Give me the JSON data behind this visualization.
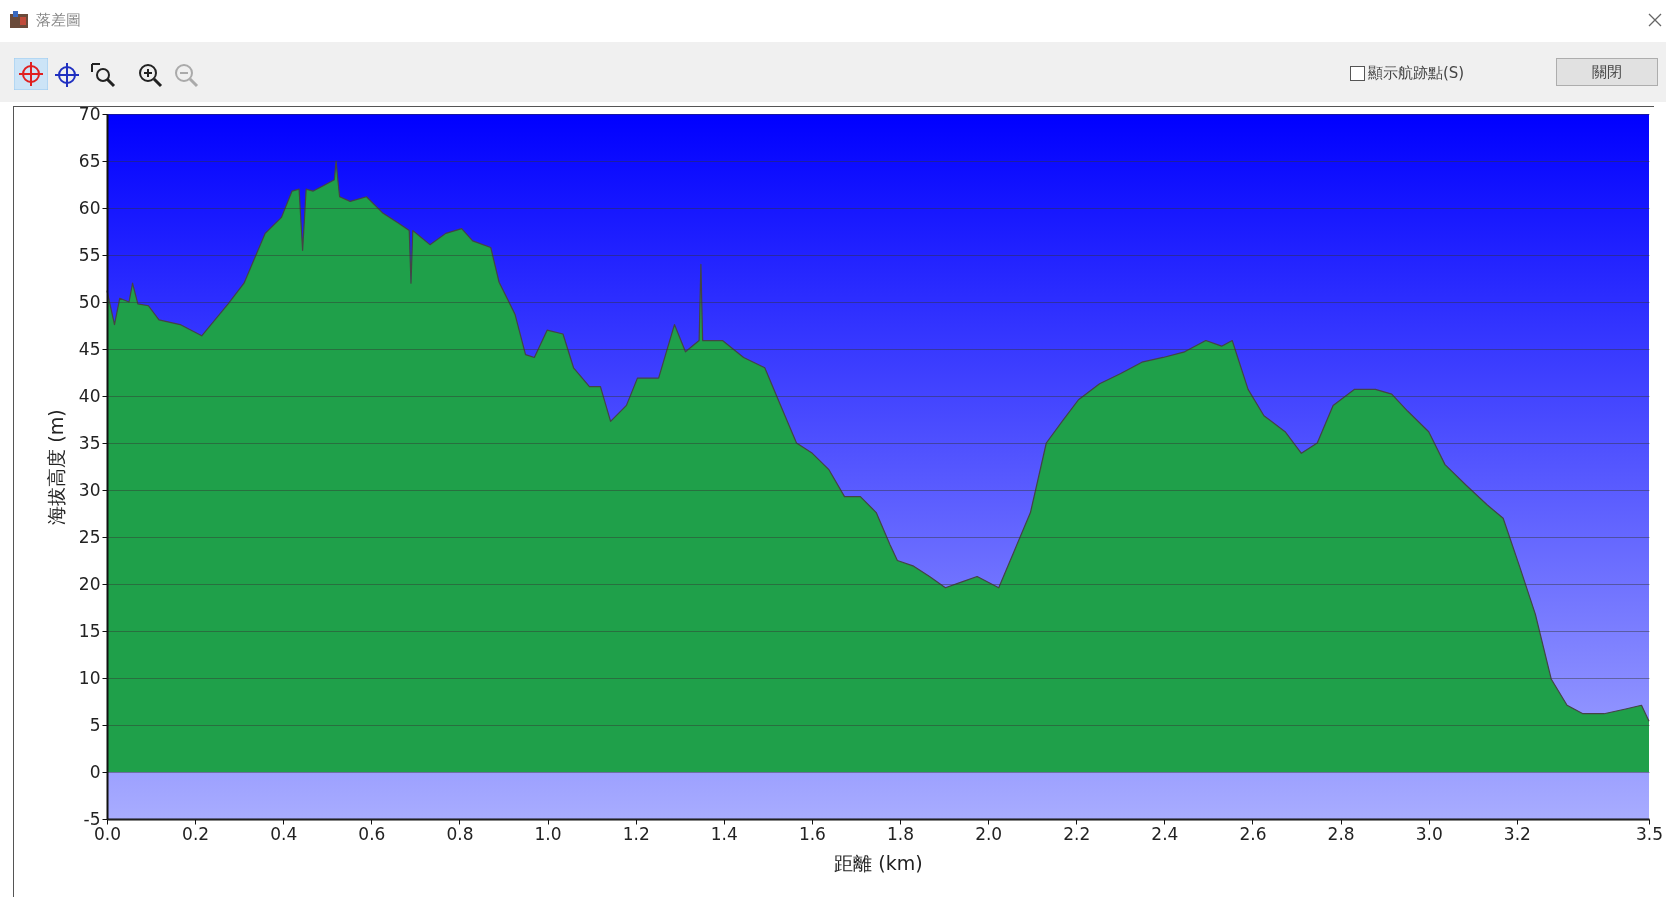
{
  "chart_data": {
    "type": "area",
    "title": "落差圖",
    "xlabel": "距離 (km)",
    "ylabel": "海拔高度 (m)",
    "annotations": [
      "顯示航跡點(S)",
      "關閉"
    ],
    "x": [
      0,
      0.017,
      0.029,
      0.05,
      0.058,
      0.07,
      0.094,
      0.118,
      0.166,
      0.215,
      0.275,
      0.311,
      0.359,
      0.396,
      0.42,
      0.436,
      0.444,
      0.452,
      0.468,
      0.492,
      0.516,
      0.52,
      0.524,
      0.528,
      0.552,
      0.589,
      0.625,
      0.661,
      0.686,
      0.69,
      0.694,
      0.733,
      0.769,
      0.805,
      0.83,
      0.871,
      0.89,
      0.926,
      0.95,
      0.97,
      0.999,
      1.035,
      1.059,
      1.095,
      1.12,
      1.143,
      1.179,
      1.204,
      1.252,
      1.288,
      1.313,
      1.344,
      1.348,
      1.352,
      1.397,
      1.445,
      1.493,
      1.529,
      1.565,
      1.601,
      1.638,
      1.674,
      1.71,
      1.746,
      1.777,
      1.794,
      1.831,
      1.867,
      1.903,
      1.939,
      1.975,
      2.024,
      2.06,
      2.096,
      2.132,
      2.168,
      2.205,
      2.253,
      2.301,
      2.349,
      2.397,
      2.446,
      2.494,
      2.53,
      2.554,
      2.59,
      2.626,
      2.674,
      2.711,
      2.747,
      2.783,
      2.831,
      2.879,
      2.916,
      2.952,
      3.0,
      3.037,
      3.085,
      3.133,
      3.169,
      3.206,
      3.242,
      3.278,
      3.314,
      3.35,
      3.398,
      3.447,
      3.483,
      3.5
    ],
    "series": [
      {
        "color": "#1fa04a",
        "values": [
          51.2,
          47.6,
          50.4,
          50,
          52,
          49.8,
          49.6,
          48.1,
          47.6,
          46.4,
          49.8,
          52,
          57.3,
          59,
          61.8,
          62,
          55.5,
          62,
          61.8,
          62.4,
          63,
          65,
          63,
          61.2,
          60.7,
          61.2,
          59.5,
          58.4,
          57.6,
          52,
          57.6,
          56.1,
          57.3,
          57.8,
          56.5,
          55.8,
          52.1,
          48.7,
          44.4,
          44.1,
          47,
          46.6,
          43,
          41,
          41,
          37.3,
          39,
          41.9,
          41.9,
          47.6,
          44.7,
          45.9,
          54,
          45.9,
          45.9,
          44.1,
          43,
          39,
          35,
          33.9,
          32.2,
          29.3,
          29.3,
          27.6,
          24.2,
          22.5,
          21.9,
          20.8,
          19.6,
          20.2,
          20.8,
          19.6,
          23.6,
          27.6,
          35,
          37.3,
          39.6,
          41.3,
          42.4,
          43.6,
          44.1,
          44.7,
          45.9,
          45.3,
          45.9,
          40.7,
          37.9,
          36.2,
          33.9,
          35,
          39,
          40.7,
          40.7,
          40.2,
          38.4,
          36.2,
          32.7,
          30.5,
          28.4,
          27,
          21.9,
          16.8,
          9.9,
          7.1,
          6.2,
          6.2,
          6.7,
          7.1,
          5.4
        ]
      }
    ],
    "xlim": [
      0,
      3.5
    ],
    "xticks": [
      {
        "value": 0,
        "label": "0.0"
      },
      0.2,
      0.4,
      0.6,
      0.8,
      {
        "value": 1,
        "label": "1.0"
      },
      1.2,
      1.4,
      1.6,
      1.8,
      {
        "value": 2,
        "label": "2.0"
      },
      2.2,
      2.4,
      2.6,
      2.8,
      {
        "value": 3,
        "label": "3.0"
      },
      3.2,
      3.5
    ],
    "ylim": [
      -5,
      70
    ],
    "yticks": [
      -5,
      0,
      5,
      10,
      15,
      20,
      25,
      30,
      35,
      40,
      45,
      50,
      55,
      60,
      65,
      70
    ],
    "grid": "y"
  }
}
